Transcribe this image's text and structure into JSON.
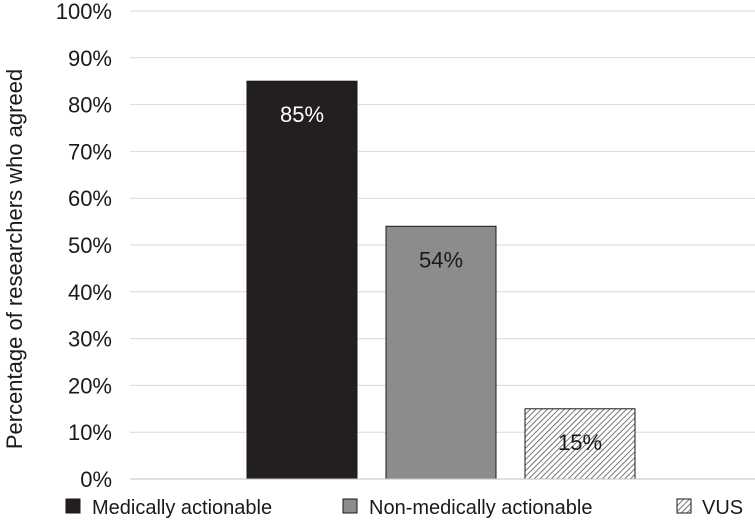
{
  "chart_data": {
    "type": "bar",
    "title": "",
    "xlabel": "",
    "ylabel": "Percentage of researchers who agreed",
    "categories": [
      "Medically actionable",
      "Non-medically actionable",
      "VUS"
    ],
    "values": [
      85,
      54,
      15
    ],
    "value_labels": [
      "85%",
      "54%",
      "15%"
    ],
    "ylim": [
      0,
      100
    ],
    "yticks": [
      "0%",
      "10%",
      "20%",
      "30%",
      "40%",
      "50%",
      "60%",
      "70%",
      "80%",
      "90%",
      "100%"
    ],
    "grid": true,
    "legend": "bottom",
    "colors": [
      "#231f20",
      "#8c8c8c",
      "hatched"
    ],
    "label_colors": [
      "#ffffff",
      "#1a1a1a",
      "#1a1a1a"
    ]
  }
}
